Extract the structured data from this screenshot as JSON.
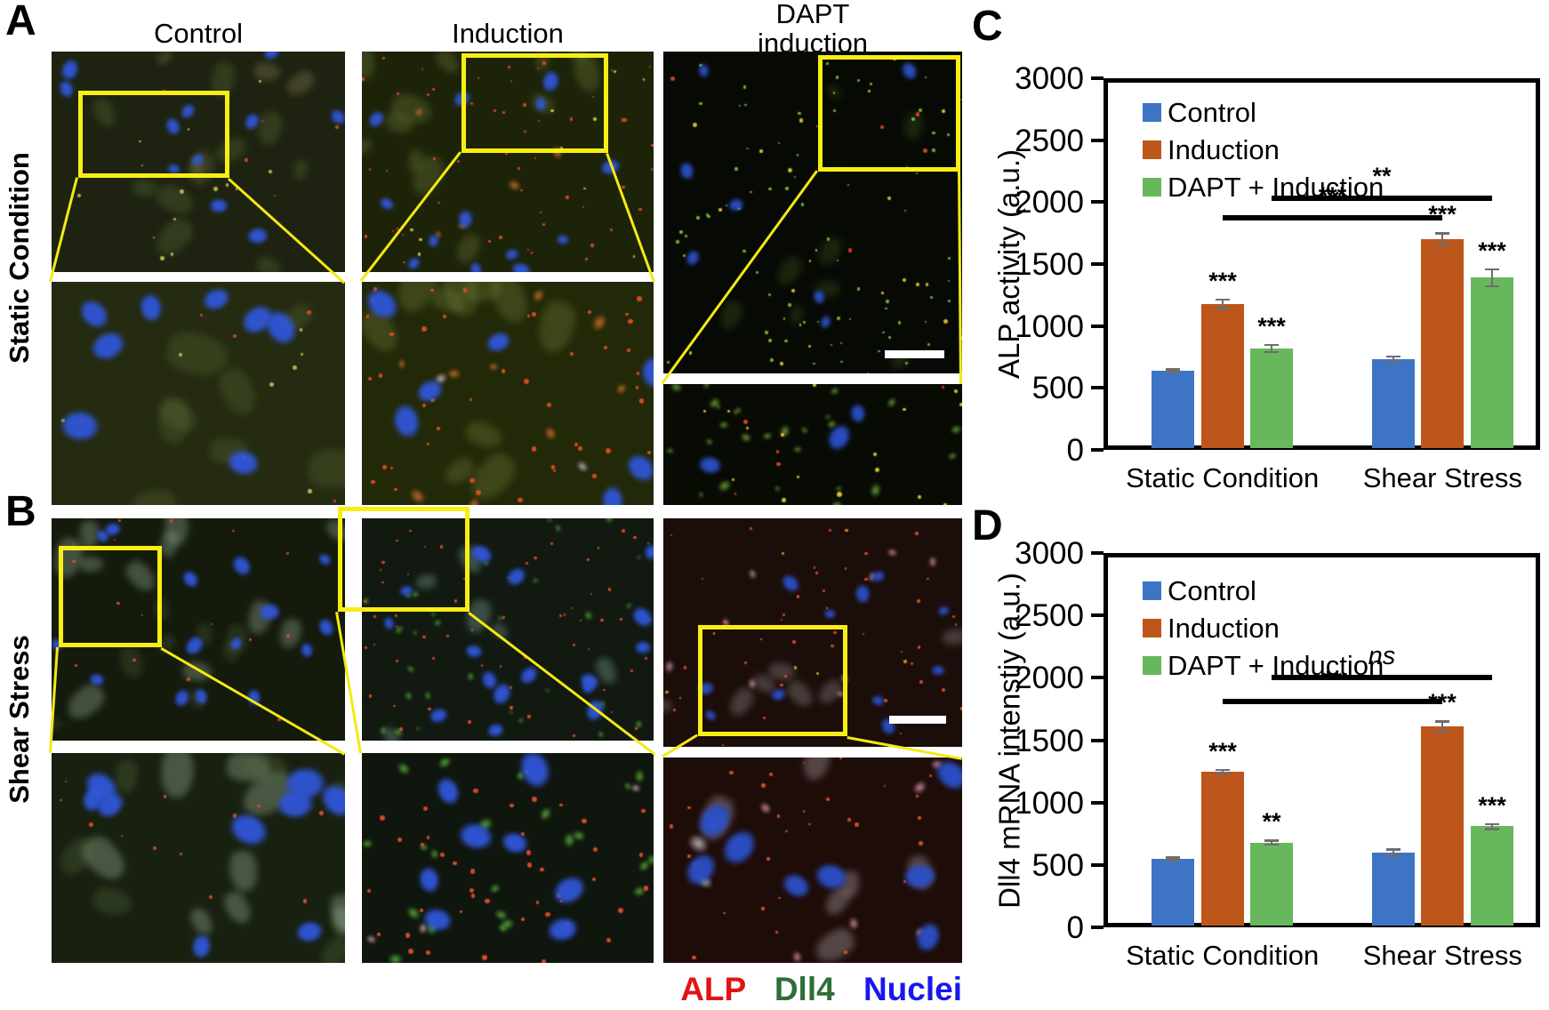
{
  "figure": {
    "panel_letters": {
      "a": "A",
      "b": "B",
      "c": "C",
      "d": "D"
    },
    "column_headers": [
      {
        "label": "Control"
      },
      {
        "label": "Induction"
      },
      {
        "label": "DAPT",
        "label2": "induction"
      }
    ],
    "row_labels": [
      "Static Condition",
      "Shear Stress"
    ],
    "stain_legend": [
      {
        "label": "ALP",
        "color": "#e11414"
      },
      {
        "label": "Dll4",
        "color": "#2f6e39"
      },
      {
        "label": "Nuclei",
        "color": "#1818ee"
      }
    ],
    "roi_color": "#f8ee15",
    "scalebar_color": "#ffffff"
  },
  "chart_data": [
    {
      "type": "bar",
      "panel": "C",
      "ylabel": "ALP activity (a.u.)",
      "ylim": [
        0,
        3000
      ],
      "ytick_step": 500,
      "grid": false,
      "legend_position": "top-left",
      "categories": [
        "Static Condition",
        "Shear Stress"
      ],
      "series": [
        {
          "name": "Control",
          "color": "#3e74c4",
          "values": [
            640,
            730
          ],
          "errors": [
            12,
            25
          ],
          "sig": [
            "",
            ""
          ]
        },
        {
          "name": "Induction",
          "color": "#bd561b",
          "values": [
            1180,
            1700
          ],
          "errors": [
            35,
            48
          ],
          "sig": [
            "***",
            "***"
          ]
        },
        {
          "name": "DAPT + Induction",
          "color": "#67b85c",
          "values": [
            820,
            1390
          ],
          "errors": [
            28,
            68
          ],
          "sig": [
            "***",
            "***"
          ]
        }
      ],
      "comparisons": [
        {
          "series": "Induction",
          "label": "***",
          "level": 1870,
          "italic": false
        },
        {
          "series": "DAPT + Induction",
          "label": "**",
          "level": 2030,
          "italic": false
        }
      ]
    },
    {
      "type": "bar",
      "panel": "D",
      "ylabel": "Dll4 mRNA intenstiy (a.u.)",
      "ylim": [
        0,
        3000
      ],
      "ytick_step": 500,
      "grid": false,
      "legend_position": "top-left",
      "categories": [
        "Static Condition",
        "Shear Stress"
      ],
      "series": [
        {
          "name": "Control",
          "color": "#3e74c4",
          "values": [
            550,
            600
          ],
          "errors": [
            10,
            25
          ],
          "sig": [
            "",
            ""
          ]
        },
        {
          "name": "Induction",
          "color": "#bd561b",
          "values": [
            1250,
            1610
          ],
          "errors": [
            12,
            40
          ],
          "sig": [
            "***",
            "***"
          ]
        },
        {
          "name": "DAPT + Induction",
          "color": "#67b85c",
          "values": [
            680,
            810
          ],
          "errors": [
            15,
            20
          ],
          "sig": [
            "**",
            "***"
          ]
        }
      ],
      "comparisons": [
        {
          "series": "Induction",
          "label": "**",
          "level": 1810,
          "italic": false
        },
        {
          "series": "DAPT + Induction",
          "label": "ns",
          "level": 2000,
          "italic": true
        }
      ]
    }
  ],
  "microscopy": {
    "stains": {
      "ALP": "red",
      "Dll4": "green",
      "Nuclei": "blue"
    },
    "tiles": {
      "a1": {
        "desc": "static-control-overview",
        "bg": "#1d2310",
        "seed": 11,
        "blobs": [
          {
            "t": "smudge",
            "c": "#6d7b42",
            "n": 10,
            "rmin": 10,
            "rmax": 26,
            "op": 0.28
          },
          {
            "t": "smudge",
            "c": "#a08d5e",
            "n": 4,
            "rmin": 8,
            "rmax": 18,
            "op": 0.3
          },
          {
            "t": "dot",
            "c": "#c9bc55",
            "n": 14,
            "rmin": 2,
            "rmax": 5
          },
          {
            "t": "dot",
            "c": "#d94a25",
            "n": 5,
            "rmin": 2,
            "rmax": 4
          },
          {
            "t": "nucleus",
            "c": "#3056d8",
            "n": 11,
            "rmin": 9,
            "rmax": 16
          }
        ]
      },
      "a2": {
        "desc": "static-induction-overview",
        "bg": "#1c2309",
        "seed": 22,
        "blobs": [
          {
            "t": "smudge",
            "c": "#74823d",
            "n": 12,
            "rmin": 10,
            "rmax": 26,
            "op": 0.32
          },
          {
            "t": "patch",
            "c": "#d4742a",
            "n": 6,
            "rmin": 6,
            "rmax": 13
          },
          {
            "t": "dot",
            "c": "#e84f24",
            "n": 55,
            "rmin": 2,
            "rmax": 4
          },
          {
            "t": "dot",
            "c": "#cfd24e",
            "n": 10,
            "rmin": 2,
            "rmax": 4
          },
          {
            "t": "nucleus",
            "c": "#3056d8",
            "n": 13,
            "rmin": 9,
            "rmax": 16
          }
        ]
      },
      "a3": {
        "desc": "static-dapt-overview",
        "bg": "#070a04",
        "seed": 33,
        "blobs": [
          {
            "t": "smudge",
            "c": "#3c5520",
            "n": 8,
            "rmin": 8,
            "rmax": 18,
            "op": 0.35
          },
          {
            "t": "dot",
            "c": "#86c33f",
            "n": 80,
            "rmin": 2,
            "rmax": 4
          },
          {
            "t": "dot",
            "c": "#e3cb33",
            "n": 22,
            "rmin": 2,
            "rmax": 5
          },
          {
            "t": "dot",
            "c": "#e0492a",
            "n": 6,
            "rmin": 2,
            "rmax": 5
          },
          {
            "t": "nucleus",
            "c": "#2b50c8",
            "n": 7,
            "rmin": 8,
            "rmax": 14
          }
        ]
      },
      "a1i": {
        "desc": "static-control-inset",
        "bg": "#242b10",
        "seed": 44,
        "blobs": [
          {
            "t": "smudge",
            "c": "#6d7b42",
            "n": 8,
            "rmin": 16,
            "rmax": 36,
            "op": 0.25
          },
          {
            "t": "dot",
            "c": "#c9bc55",
            "n": 8,
            "rmin": 3,
            "rmax": 6
          },
          {
            "t": "dot",
            "c": "#d94a25",
            "n": 4,
            "rmin": 2,
            "rmax": 5
          },
          {
            "t": "nucleus",
            "c": "#3056d8",
            "n": 8,
            "rmin": 18,
            "rmax": 30
          }
        ]
      },
      "a2i": {
        "desc": "static-induction-inset",
        "bg": "#222908",
        "seed": 55,
        "blobs": [
          {
            "t": "smudge",
            "c": "#7c8742",
            "n": 10,
            "rmin": 16,
            "rmax": 34,
            "op": 0.3
          },
          {
            "t": "patch",
            "c": "#d9742b",
            "n": 9,
            "rmin": 8,
            "rmax": 18
          },
          {
            "t": "patch",
            "c": "#d8c0d8",
            "n": 2,
            "rmin": 10,
            "rmax": 16
          },
          {
            "t": "dot",
            "c": "#e84f24",
            "n": 45,
            "rmin": 3,
            "rmax": 6
          },
          {
            "t": "nucleus",
            "c": "#3056d8",
            "n": 7,
            "rmin": 16,
            "rmax": 30
          }
        ]
      },
      "a3i": {
        "desc": "static-dapt-inset",
        "bg": "#080b04",
        "seed": 66,
        "blobs": [
          {
            "t": "patch",
            "c": "#79b93c",
            "n": 26,
            "rmin": 5,
            "rmax": 13
          },
          {
            "t": "dot",
            "c": "#e6ce34",
            "n": 16,
            "rmin": 3,
            "rmax": 6
          },
          {
            "t": "dot",
            "c": "#e0492a",
            "n": 5,
            "rmin": 2,
            "rmax": 5
          },
          {
            "t": "nucleus",
            "c": "#2b50c8",
            "n": 3,
            "rmin": 14,
            "rmax": 22
          }
        ]
      },
      "b1": {
        "desc": "shear-control-overview",
        "bg": "#141a0c",
        "seed": 77,
        "blobs": [
          {
            "t": "smudge",
            "c": "#9db69b",
            "n": 11,
            "rmin": 10,
            "rmax": 24,
            "op": 0.35
          },
          {
            "t": "smudge",
            "c": "#51653a",
            "n": 8,
            "rmin": 8,
            "rmax": 20,
            "op": 0.3
          },
          {
            "t": "dot",
            "c": "#e05030",
            "n": 18,
            "rmin": 2,
            "rmax": 4
          },
          {
            "t": "nucleus",
            "c": "#3056d8",
            "n": 15,
            "rmin": 9,
            "rmax": 16
          }
        ]
      },
      "b2": {
        "desc": "shear-induction-overview",
        "bg": "#111910",
        "seed": 88,
        "blobs": [
          {
            "t": "smudge",
            "c": "#9ec9b9",
            "n": 6,
            "rmin": 10,
            "rmax": 22,
            "op": 0.3
          },
          {
            "t": "patch",
            "c": "#57b53e",
            "n": 30,
            "rmin": 4,
            "rmax": 9
          },
          {
            "t": "dot",
            "c": "#ea4f2e",
            "n": 60,
            "rmin": 2,
            "rmax": 4
          },
          {
            "t": "nucleus",
            "c": "#3056d8",
            "n": 16,
            "rmin": 9,
            "rmax": 17
          }
        ]
      },
      "b3": {
        "desc": "shear-dapt-overview",
        "bg": "#1b0d09",
        "seed": 99,
        "blobs": [
          {
            "t": "smudge",
            "c": "#9a8f96",
            "n": 7,
            "rmin": 10,
            "rmax": 22,
            "op": 0.35
          },
          {
            "t": "patch",
            "c": "#d998b4",
            "n": 9,
            "rmin": 5,
            "rmax": 11
          },
          {
            "t": "dot",
            "c": "#e2542c",
            "n": 40,
            "rmin": 2,
            "rmax": 4
          },
          {
            "t": "dot",
            "c": "#e89a35",
            "n": 10,
            "rmin": 2,
            "rmax": 4
          },
          {
            "t": "nucleus",
            "c": "#2b50c8",
            "n": 11,
            "rmin": 8,
            "rmax": 15
          }
        ]
      },
      "b1i": {
        "desc": "shear-control-inset",
        "bg": "#182010",
        "seed": 111,
        "blobs": [
          {
            "t": "smudge",
            "c": "#a3bb9f",
            "n": 9,
            "rmin": 14,
            "rmax": 32,
            "op": 0.35
          },
          {
            "t": "smudge",
            "c": "#5a7040",
            "n": 6,
            "rmin": 12,
            "rmax": 26,
            "op": 0.3
          },
          {
            "t": "dot",
            "c": "#e05030",
            "n": 12,
            "rmin": 2,
            "rmax": 5
          },
          {
            "t": "nucleus",
            "c": "#3056d8",
            "n": 9,
            "rmin": 18,
            "rmax": 32
          }
        ]
      },
      "b2i": {
        "desc": "shear-induction-inset",
        "bg": "#0f160d",
        "seed": 122,
        "blobs": [
          {
            "t": "patch",
            "c": "#5cbb40",
            "n": 22,
            "rmin": 7,
            "rmax": 15
          },
          {
            "t": "patch",
            "c": "#e2b8c6",
            "n": 3,
            "rmin": 8,
            "rmax": 14
          },
          {
            "t": "dot",
            "c": "#ea4f2e",
            "n": 45,
            "rmin": 3,
            "rmax": 6
          },
          {
            "t": "nucleus",
            "c": "#3056d8",
            "n": 8,
            "rmin": 18,
            "rmax": 30
          }
        ]
      },
      "b3i": {
        "desc": "shear-dapt-inset",
        "bg": "#1e0c09",
        "seed": 133,
        "blobs": [
          {
            "t": "smudge",
            "c": "#a89aa2",
            "n": 6,
            "rmin": 12,
            "rmax": 26,
            "op": 0.4
          },
          {
            "t": "patch",
            "c": "#e09ab8",
            "n": 8,
            "rmin": 6,
            "rmax": 14
          },
          {
            "t": "patch",
            "c": "#cac2c8",
            "n": 2,
            "rmin": 14,
            "rmax": 20
          },
          {
            "t": "dot",
            "c": "#e2542c",
            "n": 30,
            "rmin": 2,
            "rmax": 5
          },
          {
            "t": "nucleus",
            "c": "#2b50c8",
            "n": 8,
            "rmin": 16,
            "rmax": 30
          }
        ]
      }
    }
  }
}
